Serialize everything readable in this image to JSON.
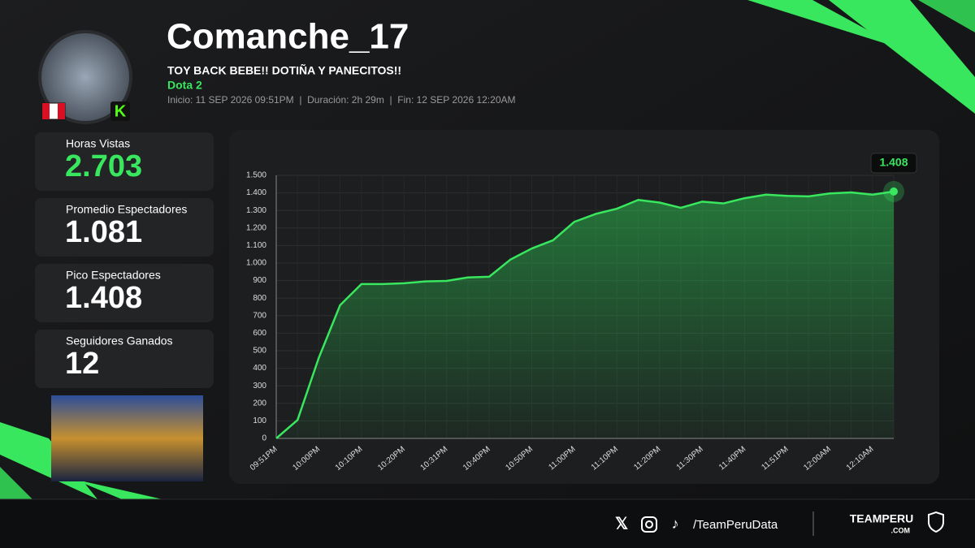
{
  "header": {
    "name": "Comanche_17",
    "stream_title": "TOY BACK BEBE!! DOTIÑA Y PANECITOS!!",
    "game": "Dota 2",
    "info": "Inicio: 11 SEP 2026 09:51PM  |  Duración: 2h 29m  |  Fin: 12 SEP 2026 12:20AM"
  },
  "stats": [
    {
      "label": "Horas Vistas",
      "value": "2.703"
    },
    {
      "label": "Promedio Espectadores",
      "value": "1.081"
    },
    {
      "label": "Pico Espectadores",
      "value": "1.408"
    },
    {
      "label": "Seguidores Ganados",
      "value": "12"
    }
  ],
  "footer": {
    "handle": "/TeamPeruData",
    "brand": "TEAMPERU",
    "brand_sub": ".COM"
  },
  "chart_data": {
    "type": "line",
    "color": "#39e75f",
    "grid": true,
    "categories": [
      "09:51PM",
      null,
      "10:00PM",
      null,
      "10:10PM",
      null,
      "10:20PM",
      null,
      "10:31PM",
      null,
      "10:40PM",
      null,
      "10:50PM",
      null,
      "11:00PM",
      null,
      "11:10PM",
      null,
      "11:20PM",
      null,
      "11:30PM",
      null,
      "11:40PM",
      null,
      "11:51PM",
      null,
      "12:00AM",
      null,
      "12:10AM",
      null
    ],
    "values": [
      0,
      105,
      460,
      760,
      880,
      880,
      885,
      895,
      898,
      918,
      922,
      1020,
      1083,
      1130,
      1235,
      1280,
      1310,
      1360,
      1345,
      1315,
      1350,
      1340,
      1370,
      1390,
      1383,
      1380,
      1397,
      1403,
      1390,
      1408
    ],
    "value_labels": [
      null,
      null,
      null,
      null,
      null,
      null,
      null,
      null,
      null,
      null,
      null,
      null,
      null,
      null,
      null,
      null,
      null,
      null,
      null,
      null,
      null,
      null,
      null,
      null,
      null,
      null,
      null,
      null,
      null,
      "1.408"
    ],
    "ylim": [
      0,
      1500
    ],
    "yticks": [
      0,
      100,
      200,
      300,
      400,
      500,
      600,
      700,
      800,
      900,
      {
        "value": 1000,
        "label": "1.000"
      },
      {
        "value": 1100,
        "label": "1.100"
      },
      {
        "value": 1200,
        "label": "1.200"
      },
      {
        "value": 1300,
        "label": "1.300"
      },
      {
        "value": 1400,
        "label": "1.400"
      },
      {
        "value": 1500,
        "label": "1.500"
      }
    ]
  }
}
